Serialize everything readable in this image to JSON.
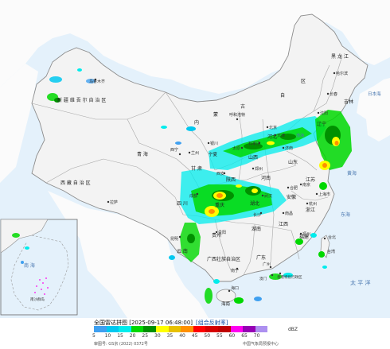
{
  "legend": {
    "title": "全国雷达拼图 [2025-09-17 06:48:00]",
    "product": "[组合反射率]",
    "unit": "dBZ",
    "ticks": [
      "5",
      "10",
      "15",
      "20",
      "25",
      "30",
      "35",
      "40",
      "45",
      "50",
      "55",
      "60",
      "65",
      "70"
    ],
    "colors": [
      "#3fa0f0",
      "#00c8f0",
      "#00ecec",
      "#00d800",
      "#009000",
      "#ffff00",
      "#e7c000",
      "#ff9000",
      "#ff0000",
      "#d60000",
      "#c00000",
      "#ff00f0",
      "#9600b4",
      "#ad90f0"
    ],
    "approval": "审图号: GS京 (2022) 0372号",
    "source": "中国气象局预报中心"
  },
  "map": {
    "colors": {
      "ocean": "#e4f1fb",
      "land_china": "#f3f3f3",
      "land_other": "#fbfbfb",
      "border": "#8c8c8c",
      "province": "#a8a8a8"
    },
    "regions": [
      {
        "id": "heilongjiang",
        "text": "黑 龙 江"
      },
      {
        "id": "jilin",
        "text": "吉林"
      },
      {
        "id": "liaoning",
        "text": "辽宁"
      },
      {
        "id": "inner-mongolia-a",
        "text": "内"
      },
      {
        "id": "inner-mongolia-b",
        "text": "蒙"
      },
      {
        "id": "inner-mongolia-c",
        "text": "古"
      },
      {
        "id": "inner-mongolia-d",
        "text": "区"
      },
      {
        "id": "inner-mongolia-e",
        "text": "自"
      },
      {
        "id": "xinjiang",
        "text": "新 疆 维 吾 尔 自 治 区"
      },
      {
        "id": "tibet",
        "text": "西 藏 自 治 区"
      },
      {
        "id": "qinghai",
        "text": "青 海"
      },
      {
        "id": "gansu",
        "text": "甘 肃"
      },
      {
        "id": "ningxia",
        "text": "宁夏"
      },
      {
        "id": "shaanxi",
        "text": "陕西"
      },
      {
        "id": "shanxi",
        "text": "山西"
      },
      {
        "id": "hebei",
        "text": "河北"
      },
      {
        "id": "shandong",
        "text": "山东"
      },
      {
        "id": "henan",
        "text": "河南"
      },
      {
        "id": "jiangsu",
        "text": "江苏"
      },
      {
        "id": "anhui",
        "text": "安徽"
      },
      {
        "id": "hubei",
        "text": "湖北"
      },
      {
        "id": "sichuan",
        "text": "四 川"
      },
      {
        "id": "chongqing",
        "text": "重庆"
      },
      {
        "id": "guizhou",
        "text": "贵州"
      },
      {
        "id": "yunnan",
        "text": "云 南"
      },
      {
        "id": "hunan",
        "text": "湖南"
      },
      {
        "id": "jiangxi",
        "text": "江西"
      },
      {
        "id": "zhejiang",
        "text": "浙江"
      },
      {
        "id": "fujian",
        "text": "福建"
      },
      {
        "id": "guangxi",
        "text": "广西壮族自治区"
      },
      {
        "id": "guangdong",
        "text": "广东"
      },
      {
        "id": "taiwan",
        "text": "台湾"
      },
      {
        "id": "hainan",
        "text": "海南"
      }
    ],
    "cities": [
      {
        "id": "harbin",
        "text": "哈尔滨"
      },
      {
        "id": "changchun",
        "text": "长春"
      },
      {
        "id": "shenyang",
        "text": "沈阳"
      },
      {
        "id": "urumqi",
        "text": "乌鲁木齐"
      },
      {
        "id": "hohhot",
        "text": "呼和浩特"
      },
      {
        "id": "beijing",
        "text": "北京"
      },
      {
        "id": "tianjin",
        "text": "天津"
      },
      {
        "id": "shijiazhuang",
        "text": "石家庄"
      },
      {
        "id": "taiyuan",
        "text": "太原"
      },
      {
        "id": "jinan",
        "text": "济南"
      },
      {
        "id": "zhengzhou",
        "text": "郑州"
      },
      {
        "id": "xian",
        "text": "西安"
      },
      {
        "id": "yinchuan",
        "text": "银川"
      },
      {
        "id": "lanzhou",
        "text": "兰州"
      },
      {
        "id": "xining",
        "text": "西宁"
      },
      {
        "id": "lhasa",
        "text": "拉萨"
      },
      {
        "id": "chengdu",
        "text": "成都"
      },
      {
        "id": "wuhan",
        "text": "武汉"
      },
      {
        "id": "hefei",
        "text": "合肥"
      },
      {
        "id": "nanjing",
        "text": "南京"
      },
      {
        "id": "shanghai",
        "text": "上海市"
      },
      {
        "id": "hangzhou",
        "text": "杭州"
      },
      {
        "id": "nanchang",
        "text": "南昌"
      },
      {
        "id": "changsha",
        "text": "长沙"
      },
      {
        "id": "fuzhou",
        "text": "福州"
      },
      {
        "id": "guangzhou",
        "text": "广州"
      },
      {
        "id": "hongkong",
        "text": "香港特别行政区"
      },
      {
        "id": "macau",
        "text": "澳门"
      },
      {
        "id": "nanning",
        "text": "南宁"
      },
      {
        "id": "kunming",
        "text": "昆明"
      },
      {
        "id": "guiyang",
        "text": "贵阳"
      },
      {
        "id": "taipei",
        "text": "台北"
      },
      {
        "id": "haikou",
        "text": "海口"
      }
    ],
    "seas": [
      {
        "id": "yellow-sea",
        "text": "黄海"
      },
      {
        "id": "east-china-sea",
        "text": "东海"
      },
      {
        "id": "pacific",
        "text": "太 平 洋"
      },
      {
        "id": "japan-sea",
        "text": "日本海"
      },
      {
        "id": "bohai",
        "text": "渤海"
      }
    ],
    "inset": {
      "labels": [
        {
          "id": "nanhai",
          "text": "南 海"
        },
        {
          "id": "nansha",
          "text": "南沙群岛"
        }
      ]
    }
  }
}
